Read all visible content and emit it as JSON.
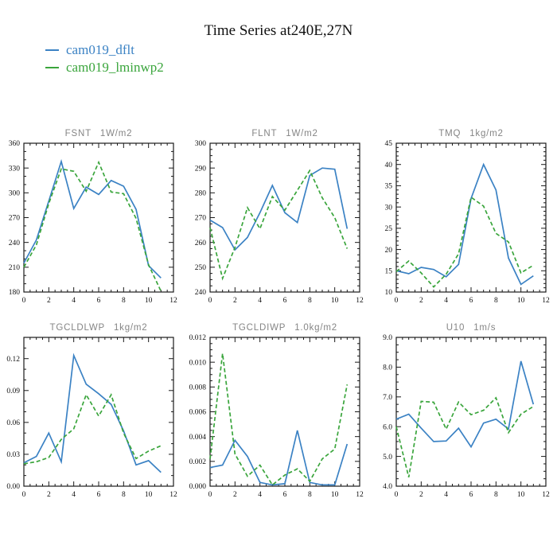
{
  "page": {
    "title": "Time Series at240E,27N"
  },
  "legend": {
    "entries": [
      {
        "label": "cam019_dflt",
        "color": "#3b82c4",
        "dash": false
      },
      {
        "label": "cam019_lminwp2",
        "color": "#3aa53c",
        "dash": true
      }
    ]
  },
  "chart_data": [
    {
      "type": "line",
      "var": "FSNT",
      "units": "1W/m2",
      "xlim": [
        0,
        12
      ],
      "xtick_step": 2,
      "xminor_step": 0.5,
      "xtick_decimals": 0,
      "ylim": [
        180,
        360
      ],
      "ytick_step": 30,
      "yminor_step": 10,
      "ytick_decimals": 0,
      "grid": false,
      "x": [
        0,
        1,
        2,
        3,
        4,
        5,
        6,
        7,
        8,
        9,
        10,
        11
      ],
      "series": [
        {
          "name": "cam019_dflt",
          "color": "#3b82c4",
          "dash": false,
          "values": [
            215,
            243,
            290,
            338,
            281,
            307,
            298,
            315,
            308,
            280,
            212,
            197
          ]
        },
        {
          "name": "cam019_lminwp2",
          "color": "#3aa53c",
          "dash": true,
          "values": [
            210,
            237,
            287,
            329,
            326,
            302,
            337,
            301,
            299,
            269,
            213,
            181
          ]
        }
      ]
    },
    {
      "type": "line",
      "var": "FLNT",
      "units": "1W/m2",
      "xlim": [
        0,
        12
      ],
      "xtick_step": 2,
      "xminor_step": 0.5,
      "xtick_decimals": 0,
      "ylim": [
        240,
        300
      ],
      "ytick_step": 10,
      "yminor_step": 2.5,
      "ytick_decimals": 0,
      "grid": false,
      "x": [
        0,
        1,
        2,
        3,
        4,
        5,
        6,
        7,
        8,
        9,
        10,
        11
      ],
      "series": [
        {
          "name": "cam019_dflt",
          "color": "#3b82c4",
          "dash": false,
          "values": [
            269,
            266,
            257,
            262,
            272,
            283,
            272,
            268,
            287,
            290,
            289.5,
            265.5
          ]
        },
        {
          "name": "cam019_lminwp2",
          "color": "#3aa53c",
          "dash": true,
          "values": [
            266,
            245.5,
            258,
            274,
            265.5,
            278.5,
            273,
            281,
            289,
            278,
            270,
            257.5
          ]
        }
      ]
    },
    {
      "type": "line",
      "var": "TMQ",
      "units": "1kg/m2",
      "xlim": [
        0,
        12
      ],
      "xtick_step": 2,
      "xminor_step": 0.5,
      "xtick_decimals": 0,
      "ylim": [
        10,
        45
      ],
      "ytick_step": 5,
      "yminor_step": 1,
      "ytick_decimals": 0,
      "grid": false,
      "x": [
        0,
        1,
        2,
        3,
        4,
        5,
        6,
        7,
        8,
        9,
        10,
        11
      ],
      "series": [
        {
          "name": "cam019_dflt",
          "color": "#3b82c4",
          "dash": false,
          "values": [
            15,
            14.3,
            15.8,
            15.3,
            13.6,
            16.5,
            32,
            40,
            34,
            18,
            11.8,
            13.8
          ]
        },
        {
          "name": "cam019_lminwp2",
          "color": "#3aa53c",
          "dash": true,
          "values": [
            14.8,
            17.3,
            14.5,
            11.2,
            14.2,
            19,
            32.3,
            30.2,
            23.8,
            21.8,
            14.5,
            16.3
          ]
        }
      ]
    },
    {
      "type": "line",
      "var": "TGCLDLWP",
      "units": "1kg/m2",
      "xlim": [
        0,
        12
      ],
      "xtick_step": 2,
      "xminor_step": 0.5,
      "xtick_decimals": 0,
      "ylim": [
        0,
        0.14
      ],
      "ytick_step": 0.03,
      "yminor_step": 0.01,
      "ytick_decimals": 2,
      "grid": false,
      "x": [
        0,
        1,
        2,
        3,
        4,
        5,
        6,
        7,
        8,
        9,
        10,
        11
      ],
      "series": [
        {
          "name": "cam019_dflt",
          "color": "#3b82c4",
          "dash": false,
          "values": [
            0.022,
            0.028,
            0.05,
            0.023,
            0.123,
            0.096,
            0.087,
            0.077,
            0.052,
            0.02,
            0.024,
            0.013
          ]
        },
        {
          "name": "cam019_lminwp2",
          "color": "#3aa53c",
          "dash": true,
          "values": [
            0.021,
            0.023,
            0.027,
            0.044,
            0.054,
            0.086,
            0.066,
            0.086,
            0.05,
            0.026,
            0.033,
            0.038
          ]
        }
      ]
    },
    {
      "type": "line",
      "var": "TGCLDIWP",
      "units": "1.0kg/m2",
      "xlim": [
        0,
        12
      ],
      "xtick_step": 2,
      "xminor_step": 0.5,
      "xtick_decimals": 0,
      "ylim": [
        0,
        0.012
      ],
      "ytick_step": 0.002,
      "yminor_step": 0.0005,
      "ytick_decimals": 3,
      "grid": false,
      "x": [
        0,
        1,
        2,
        3,
        4,
        5,
        6,
        7,
        8,
        9,
        10,
        11
      ],
      "series": [
        {
          "name": "cam019_dflt",
          "color": "#3b82c4",
          "dash": false,
          "values": [
            0.0015,
            0.0017,
            0.0037,
            0.0024,
            0.0003,
            0.0001,
            0.0002,
            0.0045,
            0.0003,
            0.0001,
            0.0001,
            0.0034
          ]
        },
        {
          "name": "cam019_lminwp2",
          "color": "#3aa53c",
          "dash": true,
          "values": [
            0.0022,
            0.0107,
            0.0026,
            0.0008,
            0.0017,
            0.0001,
            0.0009,
            0.0014,
            0.0004,
            0.0022,
            0.003,
            0.0082
          ]
        }
      ]
    },
    {
      "type": "line",
      "var": "U10",
      "units": "1m/s",
      "xlim": [
        0,
        12
      ],
      "xtick_step": 2,
      "xminor_step": 0.5,
      "xtick_decimals": 0,
      "ylim": [
        4.0,
        9.0
      ],
      "ytick_step": 1.0,
      "yminor_step": 0.25,
      "ytick_decimals": 1,
      "grid": false,
      "x": [
        0,
        1,
        2,
        3,
        4,
        5,
        6,
        7,
        8,
        9,
        10,
        11
      ],
      "series": [
        {
          "name": "cam019_dflt",
          "color": "#3b82c4",
          "dash": false,
          "values": [
            6.25,
            6.42,
            5.95,
            5.5,
            5.52,
            5.95,
            5.32,
            6.12,
            6.25,
            5.92,
            8.2,
            6.75
          ]
        },
        {
          "name": "cam019_lminwp2",
          "color": "#3aa53c",
          "dash": true,
          "values": [
            6.0,
            4.3,
            6.85,
            6.82,
            5.92,
            6.83,
            6.4,
            6.55,
            6.97,
            5.8,
            6.42,
            6.68
          ]
        }
      ]
    }
  ]
}
